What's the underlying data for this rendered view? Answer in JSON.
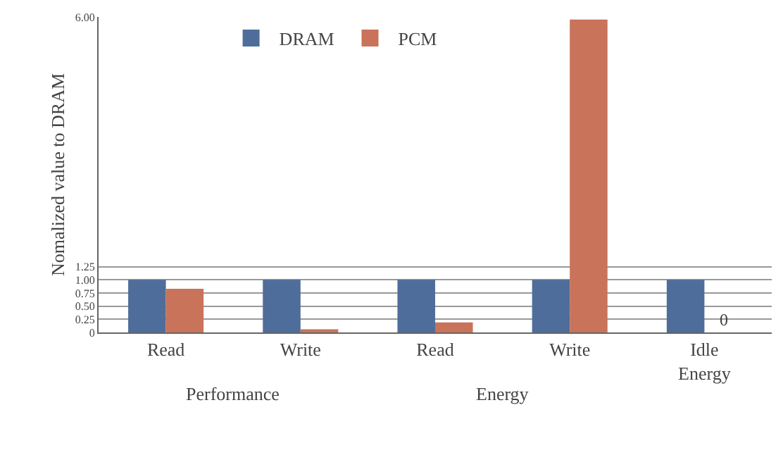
{
  "chart_data": {
    "type": "bar",
    "categories": [
      "Read",
      "Write",
      "Read",
      "Write",
      "Idle\nEnergy"
    ],
    "ylabel": "Nomalized value to DRAM",
    "ylim": [
      0,
      6.0
    ],
    "yticks": [
      0,
      {
        "value": 0.25,
        "label": "0.25"
      },
      {
        "value": 0.5,
        "label": "0.50"
      },
      {
        "value": 0.75,
        "label": "0.75"
      },
      {
        "value": 1.0,
        "label": "1.00"
      },
      1.25,
      {
        "value": 6.0,
        "label": "6.00"
      }
    ],
    "grid": "y",
    "legend": "top",
    "annotations": [
      "Performance",
      "Energy",
      {
        "text": "0",
        "x": "Idle\nEnergy",
        "y": 0
      }
    ],
    "series": [
      {
        "name": "DRAM",
        "color": "#4f6d9a",
        "values": [
          1.0,
          1.0,
          1.0,
          1.0,
          1.0
        ]
      },
      {
        "name": "PCM",
        "color": "#c8735a",
        "values": [
          0.83,
          0.06,
          0.19,
          5.95,
          0
        ]
      }
    ]
  }
}
